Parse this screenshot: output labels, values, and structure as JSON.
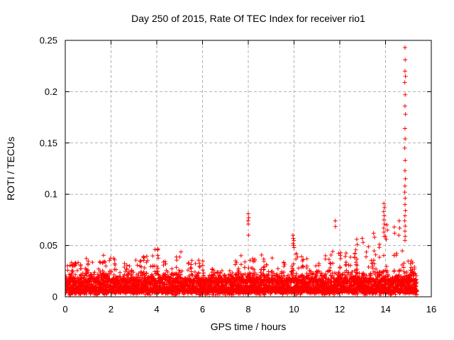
{
  "page": {
    "background_color": "#ffffff"
  },
  "chart_data": {
    "type": "scatter",
    "title": "Day 250 of 2015, Rate Of TEC Index for receiver rio1",
    "xlabel": "GPS time / hours",
    "ylabel": "ROTI / TECUs",
    "xlim": [
      0,
      16
    ],
    "ylim": [
      0,
      0.25
    ],
    "xticks": [
      0,
      2,
      4,
      6,
      8,
      10,
      12,
      14,
      16
    ],
    "xtick_labels": [
      "0",
      "2",
      "4",
      "6",
      "8",
      "10",
      "12",
      "14",
      "16"
    ],
    "yticks": [
      0,
      0.05,
      0.1,
      0.15,
      0.2,
      0.25
    ],
    "ytick_labels": [
      "0",
      "0.05",
      "0.1",
      "0.15",
      "0.2",
      "0.25"
    ],
    "grid": {
      "visible": true,
      "style": "dashed",
      "color": "#b0b0b0"
    },
    "legend": "none",
    "axis_color": "#000000",
    "marker": {
      "shape": "plus",
      "color": "#ff0000",
      "size": 7
    },
    "series_name": "ROTI",
    "data_x_extent": [
      0.02,
      15.37
    ],
    "baseline_band": {
      "y_dense_low": 0.003,
      "y_dense_high": 0.028,
      "description": "continuous dense noise band of + markers across 0-15.37 h"
    },
    "scatter": {
      "seed": 11,
      "step": 0.01,
      "x_start": 0.02,
      "x_end": 15.37,
      "envelope": [
        [
          0.05,
          0.03
        ],
        [
          0.3,
          0.036
        ],
        [
          0.6,
          0.034
        ],
        [
          0.85,
          0.044
        ],
        [
          1.1,
          0.037
        ],
        [
          1.35,
          0.042
        ],
        [
          1.6,
          0.039
        ],
        [
          1.85,
          0.045
        ],
        [
          2.1,
          0.041
        ],
        [
          2.35,
          0.044
        ],
        [
          2.6,
          0.036
        ],
        [
          2.85,
          0.034
        ],
        [
          3.1,
          0.041
        ],
        [
          3.35,
          0.044
        ],
        [
          3.6,
          0.04
        ],
        [
          3.85,
          0.046
        ],
        [
          4.05,
          0.047
        ],
        [
          4.3,
          0.041
        ],
        [
          4.55,
          0.037
        ],
        [
          4.8,
          0.044
        ],
        [
          5.05,
          0.046
        ],
        [
          5.3,
          0.042
        ],
        [
          5.55,
          0.036
        ],
        [
          5.8,
          0.038
        ],
        [
          6.05,
          0.037
        ],
        [
          6.3,
          0.029
        ],
        [
          6.6,
          0.025
        ],
        [
          6.9,
          0.029
        ],
        [
          7.2,
          0.034
        ],
        [
          7.5,
          0.041
        ],
        [
          7.8,
          0.04
        ],
        [
          8.0,
          0.048
        ],
        [
          8.3,
          0.039
        ],
        [
          8.6,
          0.042
        ],
        [
          8.9,
          0.037
        ],
        [
          9.2,
          0.039
        ],
        [
          9.5,
          0.036
        ],
        [
          9.8,
          0.044
        ],
        [
          10.0,
          0.052
        ],
        [
          10.3,
          0.04
        ],
        [
          10.6,
          0.039
        ],
        [
          10.9,
          0.042
        ],
        [
          11.2,
          0.043
        ],
        [
          11.5,
          0.047
        ],
        [
          11.8,
          0.044
        ],
        [
          12.1,
          0.043
        ],
        [
          12.4,
          0.05
        ],
        [
          12.7,
          0.047
        ],
        [
          13.0,
          0.055
        ],
        [
          13.3,
          0.049
        ],
        [
          13.6,
          0.054
        ],
        [
          13.9,
          0.062
        ],
        [
          14.1,
          0.058
        ],
        [
          14.4,
          0.06
        ],
        [
          14.7,
          0.055
        ],
        [
          14.95,
          0.045
        ],
        [
          15.1,
          0.038
        ],
        [
          15.25,
          0.032
        ],
        [
          15.37,
          0.018
        ]
      ],
      "spike_points": [
        [
          8.0,
          0.081
        ],
        [
          8.02,
          0.077
        ],
        [
          7.99,
          0.074
        ],
        [
          8.0,
          0.071
        ],
        [
          8.01,
          0.06
        ],
        [
          9.95,
          0.06
        ],
        [
          9.97,
          0.057
        ],
        [
          9.99,
          0.055
        ],
        [
          9.96,
          0.052
        ],
        [
          9.98,
          0.05
        ],
        [
          10.0,
          0.048
        ],
        [
          11.8,
          0.074
        ],
        [
          11.81,
          0.0685
        ],
        [
          12.74,
          0.056
        ],
        [
          12.76,
          0.051
        ],
        [
          12.98,
          0.057
        ],
        [
          13.02,
          0.053
        ],
        [
          13.48,
          0.062
        ],
        [
          13.52,
          0.058
        ],
        [
          13.93,
          0.091
        ],
        [
          13.95,
          0.087
        ],
        [
          13.92,
          0.083
        ],
        [
          13.94,
          0.079
        ],
        [
          13.93,
          0.075
        ],
        [
          13.95,
          0.071
        ],
        [
          13.92,
          0.067
        ],
        [
          13.93,
          0.063
        ],
        [
          13.94,
          0.059
        ],
        [
          14.06,
          0.07
        ],
        [
          14.08,
          0.065
        ],
        [
          14.38,
          0.068
        ],
        [
          14.4,
          0.062
        ],
        [
          14.6,
          0.074
        ],
        [
          14.62,
          0.067
        ],
        [
          14.58,
          0.06
        ],
        [
          14.85,
          0.243
        ],
        [
          14.86,
          0.231
        ],
        [
          14.85,
          0.22
        ],
        [
          14.87,
          0.215
        ],
        [
          14.84,
          0.209
        ],
        [
          14.86,
          0.197
        ],
        [
          14.85,
          0.186
        ],
        [
          14.87,
          0.178
        ],
        [
          14.85,
          0.164
        ],
        [
          14.86,
          0.154
        ],
        [
          14.84,
          0.145
        ],
        [
          14.86,
          0.133
        ],
        [
          14.85,
          0.123
        ],
        [
          14.87,
          0.115
        ],
        [
          14.85,
          0.108
        ],
        [
          14.84,
          0.102
        ],
        [
          14.86,
          0.096
        ],
        [
          14.85,
          0.09
        ],
        [
          14.87,
          0.084
        ],
        [
          14.85,
          0.079
        ],
        [
          14.84,
          0.074
        ],
        [
          14.86,
          0.069
        ],
        [
          14.85,
          0.064
        ],
        [
          14.86,
          0.059
        ],
        [
          14.85,
          0.055
        ]
      ]
    }
  }
}
